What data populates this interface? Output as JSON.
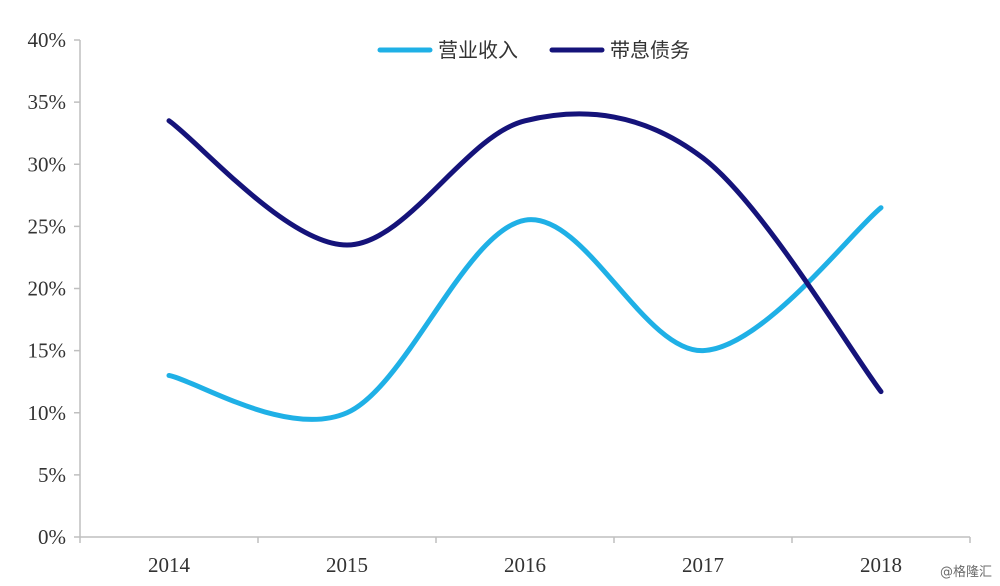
{
  "chart_data": {
    "type": "line",
    "categories": [
      "2014",
      "2015",
      "2016",
      "2017",
      "2018"
    ],
    "series": [
      {
        "name": "营业收入",
        "values": [
          13,
          10,
          25.5,
          15,
          26.5
        ],
        "color": "#1fb0e6"
      },
      {
        "name": "带息债务",
        "values": [
          33.5,
          23.5,
          33.5,
          30.5,
          11.7
        ],
        "color": "#15137a"
      }
    ],
    "ylim": [
      0,
      40
    ],
    "yticks": [
      0,
      5,
      10,
      15,
      20,
      25,
      30,
      35,
      40
    ],
    "y_tick_labels": [
      "0%",
      "5%",
      "10%",
      "15%",
      "20%",
      "25%",
      "30%",
      "35%",
      "40%"
    ],
    "legend_position": "top",
    "grid": false
  },
  "watermark": "@格隆汇"
}
